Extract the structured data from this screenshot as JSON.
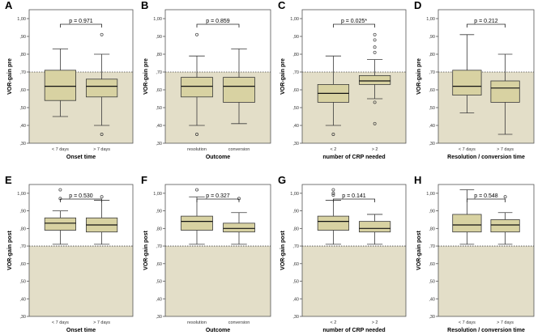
{
  "colors": {
    "shade": "#e3dec8",
    "box_fill": "#d8d2a2",
    "box_stroke": "#3a3a3a",
    "axis": "#555555",
    "dotted": "#444444"
  },
  "chart_data": [
    {
      "panel": "A",
      "type": "box",
      "title": "",
      "xlabel": "Onset time",
      "ylabel": "VOR-gain pre",
      "ylim": [
        0.3,
        1.05
      ],
      "ticks": [
        ",30",
        ",40",
        ",50",
        ",60",
        ",70",
        ",80",
        ",90",
        "1,00"
      ],
      "tick_values": [
        0.3,
        0.4,
        0.5,
        0.6,
        0.7,
        0.8,
        0.9,
        1.0
      ],
      "shade_below": 0.7,
      "reference_line": 0.7,
      "p_value": "p = 0.971",
      "categories": [
        "< 7 days",
        "> 7 days"
      ],
      "boxes": [
        {
          "whisker_low": 0.45,
          "q1": 0.54,
          "median": 0.62,
          "q3": 0.71,
          "whisker_high": 0.83,
          "outliers": []
        },
        {
          "whisker_low": 0.4,
          "q1": 0.56,
          "median": 0.62,
          "q3": 0.66,
          "whisker_high": 0.8,
          "outliers": [
            0.91,
            0.35
          ]
        }
      ]
    },
    {
      "panel": "B",
      "type": "box",
      "title": "",
      "xlabel": "Outcome",
      "ylabel": "VOR-gain pre",
      "ylim": [
        0.3,
        1.05
      ],
      "ticks": [
        ",30",
        ",40",
        ",50",
        ",60",
        ",70",
        ",80",
        ",90",
        "1,00"
      ],
      "tick_values": [
        0.3,
        0.4,
        0.5,
        0.6,
        0.7,
        0.8,
        0.9,
        1.0
      ],
      "shade_below": 0.7,
      "reference_line": 0.7,
      "p_value": "p = 0.859",
      "categories": [
        "resolution",
        "conversion"
      ],
      "boxes": [
        {
          "whisker_low": 0.4,
          "q1": 0.56,
          "median": 0.62,
          "q3": 0.67,
          "whisker_high": 0.79,
          "outliers": [
            0.91,
            0.35
          ]
        },
        {
          "whisker_low": 0.41,
          "q1": 0.53,
          "median": 0.62,
          "q3": 0.67,
          "whisker_high": 0.83,
          "outliers": []
        }
      ]
    },
    {
      "panel": "C",
      "type": "box",
      "title": "",
      "xlabel": "number of CRP needed",
      "ylabel": "VOR-gain pre",
      "ylim": [
        0.3,
        1.05
      ],
      "ticks": [
        ",30",
        ",40",
        ",50",
        ",60",
        ",70",
        ",80",
        ",90",
        "1,00"
      ],
      "tick_values": [
        0.3,
        0.4,
        0.5,
        0.6,
        0.7,
        0.8,
        0.9,
        1.0
      ],
      "shade_below": 0.7,
      "reference_line": 0.7,
      "p_value": "p = 0.025*",
      "categories": [
        "< 2",
        "> 2"
      ],
      "boxes": [
        {
          "whisker_low": 0.4,
          "q1": 0.53,
          "median": 0.58,
          "q3": 0.63,
          "whisker_high": 0.79,
          "outliers": [
            0.35
          ]
        },
        {
          "whisker_low": 0.55,
          "q1": 0.63,
          "median": 0.65,
          "q3": 0.68,
          "whisker_high": 0.77,
          "outliers": [
            0.91,
            0.88,
            0.84,
            0.81,
            0.53,
            0.41
          ]
        }
      ]
    },
    {
      "panel": "D",
      "type": "box",
      "title": "",
      "xlabel": "Resolution / conversion time",
      "ylabel": "VOR-gain pre",
      "ylim": [
        0.3,
        1.05
      ],
      "ticks": [
        ",30",
        ",40",
        ",50",
        ",60",
        ",70",
        ",80",
        ",90",
        "1,00"
      ],
      "tick_values": [
        0.3,
        0.4,
        0.5,
        0.6,
        0.7,
        0.8,
        0.9,
        1.0
      ],
      "shade_below": 0.7,
      "reference_line": 0.7,
      "p_value": "p = 0.212",
      "categories": [
        "< 7 days",
        "> 7 days"
      ],
      "boxes": [
        {
          "whisker_low": 0.47,
          "q1": 0.57,
          "median": 0.62,
          "q3": 0.71,
          "whisker_high": 0.91,
          "outliers": []
        },
        {
          "whisker_low": 0.35,
          "q1": 0.53,
          "median": 0.61,
          "q3": 0.65,
          "whisker_high": 0.8,
          "outliers": []
        }
      ]
    },
    {
      "panel": "E",
      "type": "box",
      "title": "",
      "xlabel": "Onset time",
      "ylabel": "VOR-gain post",
      "ylim": [
        0.3,
        1.05
      ],
      "ticks": [
        ",30",
        ",40",
        ",50",
        ",60",
        ",70",
        ",80",
        ",90",
        "1,00"
      ],
      "tick_values": [
        0.3,
        0.4,
        0.5,
        0.6,
        0.7,
        0.8,
        0.9,
        1.0
      ],
      "shade_below": 0.7,
      "reference_line": 0.7,
      "p_value": "p = 0.530",
      "categories": [
        "< 7 days",
        "> 7 days"
      ],
      "boxes": [
        {
          "whisker_low": 0.71,
          "q1": 0.79,
          "median": 0.83,
          "q3": 0.86,
          "whisker_high": 0.9,
          "outliers": [
            1.02,
            0.97
          ]
        },
        {
          "whisker_low": 0.71,
          "q1": 0.78,
          "median": 0.82,
          "q3": 0.86,
          "whisker_high": 0.96,
          "outliers": [
            0.98
          ]
        }
      ]
    },
    {
      "panel": "F",
      "type": "box",
      "title": "",
      "xlabel": "Outcome",
      "ylabel": "VOR-gain post",
      "ylim": [
        0.3,
        1.05
      ],
      "ticks": [
        ",30",
        ",40",
        ",50",
        ",60",
        ",70",
        ",80",
        ",90",
        "1,00"
      ],
      "tick_values": [
        0.3,
        0.4,
        0.5,
        0.6,
        0.7,
        0.8,
        0.9,
        1.0
      ],
      "shade_below": 0.7,
      "reference_line": 0.7,
      "p_value": "p = 0.327",
      "categories": [
        "resolution",
        "conversion"
      ],
      "boxes": [
        {
          "whisker_low": 0.71,
          "q1": 0.79,
          "median": 0.84,
          "q3": 0.87,
          "whisker_high": 0.98,
          "outliers": [
            1.02
          ]
        },
        {
          "whisker_low": 0.71,
          "q1": 0.78,
          "median": 0.8,
          "q3": 0.83,
          "whisker_high": 0.89,
          "outliers": [
            0.97
          ]
        }
      ]
    },
    {
      "panel": "G",
      "type": "box",
      "title": "",
      "xlabel": "number of CRP needed",
      "ylabel": "VOR-gain post",
      "ylim": [
        0.3,
        1.05
      ],
      "ticks": [
        ",30",
        ",40",
        ",50",
        ",60",
        ",70",
        ",80",
        ",90",
        "1,00"
      ],
      "tick_values": [
        0.3,
        0.4,
        0.5,
        0.6,
        0.7,
        0.8,
        0.9,
        1.0
      ],
      "shade_below": 0.7,
      "reference_line": 0.7,
      "p_value": "p = 0.141",
      "categories": [
        "< 2",
        "> 2"
      ],
      "boxes": [
        {
          "whisker_low": 0.71,
          "q1": 0.79,
          "median": 0.84,
          "q3": 0.87,
          "whisker_high": 0.96,
          "outliers": [
            1.02,
            1.0,
            0.99
          ]
        },
        {
          "whisker_low": 0.71,
          "q1": 0.78,
          "median": 0.8,
          "q3": 0.84,
          "whisker_high": 0.88,
          "outliers": []
        }
      ]
    },
    {
      "panel": "H",
      "type": "box",
      "title": "",
      "xlabel": "Resolution / conversion time",
      "ylabel": "VOR-gain post",
      "ylim": [
        0.3,
        1.05
      ],
      "ticks": [
        ",30",
        ",40",
        ",50",
        ",60",
        ",70",
        ",80",
        ",90",
        "1,00"
      ],
      "tick_values": [
        0.3,
        0.4,
        0.5,
        0.6,
        0.7,
        0.8,
        0.9,
        1.0
      ],
      "shade_below": 0.7,
      "reference_line": 0.7,
      "p_value": "p = 0.548",
      "categories": [
        "< 7 days",
        "> 7 days"
      ],
      "boxes": [
        {
          "whisker_low": 0.71,
          "q1": 0.78,
          "median": 0.82,
          "q3": 0.88,
          "whisker_high": 1.02,
          "outliers": []
        },
        {
          "whisker_low": 0.71,
          "q1": 0.78,
          "median": 0.82,
          "q3": 0.85,
          "whisker_high": 0.89,
          "outliers": [
            0.98
          ]
        }
      ]
    }
  ]
}
